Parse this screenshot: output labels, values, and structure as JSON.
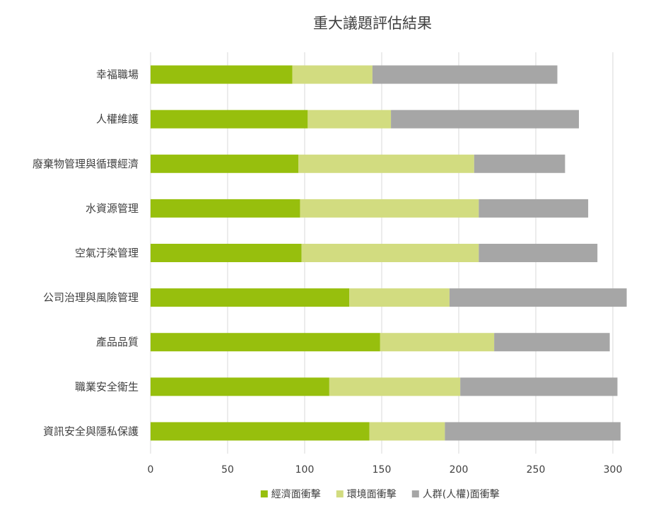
{
  "chart_data": {
    "type": "bar",
    "orientation": "horizontal",
    "stacked": true,
    "title": "重大議題評估結果",
    "categories": [
      "幸福職場",
      "人權維護",
      "廢棄物管理與循環經濟",
      "水資源管理",
      "空氣汙染管理",
      "公司治理與風險管理",
      "產品品質",
      "職業安全衛生",
      "資訊安全與隱私保護"
    ],
    "series": [
      {
        "name": "經濟面衝擊",
        "color": "#97bf0d",
        "values": [
          92,
          102,
          96,
          97,
          98,
          129,
          149,
          116,
          142
        ]
      },
      {
        "name": "環境面衝擊",
        "color": "#d2dc80",
        "values": [
          52,
          54,
          114,
          116,
          115,
          65,
          74,
          85,
          49
        ]
      },
      {
        "name": "人群(人權)面衝擊",
        "color": "#a6a6a6",
        "values": [
          120,
          122,
          59,
          71,
          77,
          115,
          75,
          102,
          114
        ]
      }
    ],
    "xlim": [
      0,
      300
    ],
    "xticks": [
      "0",
      "50",
      "100",
      "150",
      "200",
      "250",
      "300"
    ],
    "grid": true,
    "legend_position": "bottom"
  }
}
